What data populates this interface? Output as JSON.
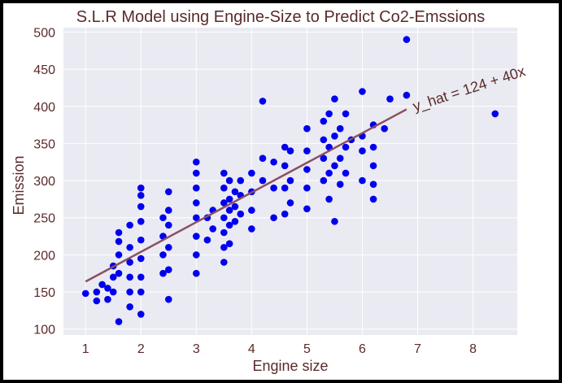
{
  "chart_data": {
    "type": "scatter",
    "title": "S.L.R Model using Engine-Size to Predict Co2-Emssions",
    "xlabel": "Engine size",
    "ylabel": "Emission",
    "xlim": [
      0.6,
      8.8
    ],
    "ylim": [
      92,
      506
    ],
    "xticks": [
      1,
      2,
      3,
      4,
      5,
      6,
      7,
      8
    ],
    "yticks": [
      100,
      150,
      200,
      250,
      300,
      350,
      400,
      450,
      500
    ],
    "grid": true,
    "fit_line": {
      "intercept": 124,
      "slope": 40,
      "x_range": [
        1.0,
        6.8
      ],
      "label": "y_hat = 124 + 40x",
      "color": "#8a5060"
    },
    "series": [
      {
        "color": "#0000ee",
        "points": [
          [
            1.0,
            148
          ],
          [
            1.2,
            138
          ],
          [
            1.2,
            150
          ],
          [
            1.3,
            160
          ],
          [
            1.4,
            140
          ],
          [
            1.4,
            155
          ],
          [
            1.5,
            150
          ],
          [
            1.5,
            170
          ],
          [
            1.5,
            185
          ],
          [
            1.6,
            110
          ],
          [
            1.6,
            175
          ],
          [
            1.6,
            200
          ],
          [
            1.6,
            218
          ],
          [
            1.6,
            230
          ],
          [
            1.8,
            130
          ],
          [
            1.8,
            150
          ],
          [
            1.8,
            170
          ],
          [
            1.8,
            190
          ],
          [
            1.8,
            210
          ],
          [
            1.8,
            240
          ],
          [
            2.0,
            120
          ],
          [
            2.0,
            150
          ],
          [
            2.0,
            170
          ],
          [
            2.0,
            195
          ],
          [
            2.0,
            220
          ],
          [
            2.0,
            245
          ],
          [
            2.0,
            265
          ],
          [
            2.0,
            280
          ],
          [
            2.0,
            290
          ],
          [
            2.4,
            175
          ],
          [
            2.4,
            200
          ],
          [
            2.4,
            225
          ],
          [
            2.4,
            250
          ],
          [
            2.5,
            140
          ],
          [
            2.5,
            180
          ],
          [
            2.5,
            210
          ],
          [
            2.5,
            240
          ],
          [
            2.5,
            260
          ],
          [
            2.5,
            285
          ],
          [
            3.0,
            175
          ],
          [
            3.0,
            200
          ],
          [
            3.0,
            225
          ],
          [
            3.0,
            250
          ],
          [
            3.0,
            270
          ],
          [
            3.0,
            290
          ],
          [
            3.0,
            310
          ],
          [
            3.0,
            325
          ],
          [
            3.2,
            220
          ],
          [
            3.2,
            250
          ],
          [
            3.3,
            235
          ],
          [
            3.3,
            260
          ],
          [
            3.5,
            190
          ],
          [
            3.5,
            210
          ],
          [
            3.5,
            230
          ],
          [
            3.5,
            250
          ],
          [
            3.5,
            270
          ],
          [
            3.5,
            290
          ],
          [
            3.5,
            310
          ],
          [
            3.6,
            215
          ],
          [
            3.6,
            240
          ],
          [
            3.6,
            260
          ],
          [
            3.6,
            275
          ],
          [
            3.6,
            300
          ],
          [
            3.7,
            245
          ],
          [
            3.7,
            265
          ],
          [
            3.7,
            285
          ],
          [
            3.8,
            255
          ],
          [
            3.8,
            280
          ],
          [
            3.8,
            300
          ],
          [
            4.0,
            235
          ],
          [
            4.0,
            260
          ],
          [
            4.0,
            285
          ],
          [
            4.0,
            310
          ],
          [
            4.2,
            300
          ],
          [
            4.2,
            330
          ],
          [
            4.2,
            407
          ],
          [
            4.4,
            250
          ],
          [
            4.4,
            290
          ],
          [
            4.4,
            325
          ],
          [
            4.6,
            255
          ],
          [
            4.6,
            290
          ],
          [
            4.6,
            320
          ],
          [
            4.6,
            345
          ],
          [
            4.7,
            270
          ],
          [
            4.7,
            300
          ],
          [
            4.7,
            340
          ],
          [
            5.0,
            262
          ],
          [
            5.0,
            290
          ],
          [
            5.0,
            315
          ],
          [
            5.0,
            340
          ],
          [
            5.0,
            370
          ],
          [
            5.3,
            300
          ],
          [
            5.3,
            330
          ],
          [
            5.3,
            355
          ],
          [
            5.3,
            380
          ],
          [
            5.4,
            275
          ],
          [
            5.4,
            310
          ],
          [
            5.4,
            345
          ],
          [
            5.4,
            390
          ],
          [
            5.5,
            245
          ],
          [
            5.5,
            320
          ],
          [
            5.5,
            360
          ],
          [
            5.5,
            410
          ],
          [
            5.6,
            295
          ],
          [
            5.6,
            330
          ],
          [
            5.6,
            370
          ],
          [
            5.7,
            310
          ],
          [
            5.7,
            345
          ],
          [
            5.7,
            390
          ],
          [
            5.8,
            355
          ],
          [
            6.0,
            300
          ],
          [
            6.0,
            340
          ],
          [
            6.0,
            360
          ],
          [
            6.0,
            420
          ],
          [
            6.2,
            275
          ],
          [
            6.2,
            295
          ],
          [
            6.2,
            320
          ],
          [
            6.2,
            345
          ],
          [
            6.2,
            375
          ],
          [
            6.4,
            370
          ],
          [
            6.5,
            410
          ],
          [
            6.8,
            415
          ],
          [
            6.8,
            490
          ],
          [
            8.4,
            390
          ]
        ]
      }
    ]
  }
}
